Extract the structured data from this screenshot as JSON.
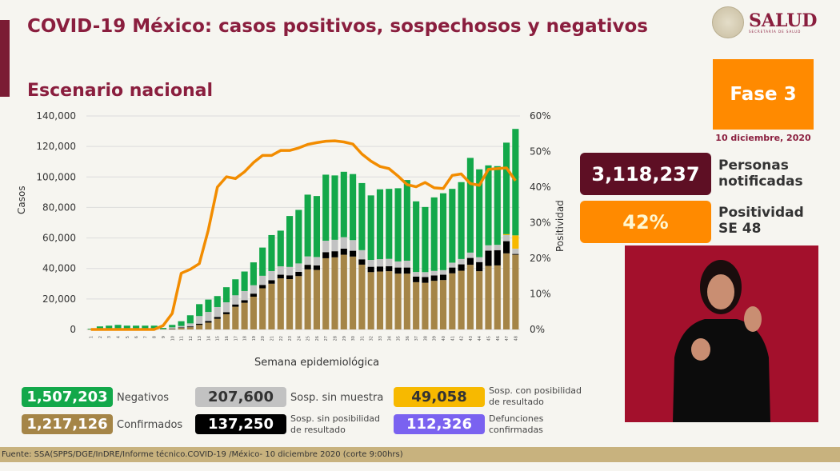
{
  "header": {
    "title": "COVID-19 México: casos positivos, sospechosos y negativos",
    "subtitle": "Escenario nacional",
    "logo_text": "SALUD",
    "logo_subtext": "SECRETARÍA DE SALUD"
  },
  "phase": {
    "label": "Fase 3",
    "date": "10 diciembre, 2020"
  },
  "kpis": [
    {
      "value": "3,118,237",
      "label_line1": "Personas",
      "label_line2": "notificadas",
      "color": "#5e0f24"
    },
    {
      "value": "42%",
      "label_line1": "Positividad",
      "label_line2": "SE 48",
      "color": "#ff8a00"
    }
  ],
  "legend": [
    {
      "value": "1,507,203",
      "label": "Negativos",
      "color": "#13a84a"
    },
    {
      "value": "207,600",
      "label": "Sosp. sin muestra",
      "color": "#c2c2c2"
    },
    {
      "value": "49,058",
      "label_line1": "Sosp. con posibilidad",
      "label_line2": "de resultado",
      "color": "#f7b900"
    },
    {
      "value": "1,217,126",
      "label": "Confirmados",
      "color": "#a58547"
    },
    {
      "value": "137,250",
      "label_line1": "Sosp. sin posibilidad",
      "label_line2": "de resultado",
      "color": "#000000"
    },
    {
      "value": "112,326",
      "label_line1": "Defunciones",
      "label_line2": "confirmadas",
      "color": "#7a62f0"
    }
  ],
  "footer": "Fuente: SSA(SPPS/DGE/InDRE/Informe técnico.COVID-19 /México- 10 diciembre 2020 (corte 9:00hrs)",
  "chart_data": {
    "type": "bar",
    "stacked": true,
    "xlabel": "Semana epidemiológica",
    "ylabel": "Casos",
    "y2label": "Positividad",
    "ylim": [
      0,
      140000
    ],
    "y2lim": [
      0,
      60
    ],
    "yticks": [
      "0",
      "20,000",
      "40,000",
      "60,000",
      "80,000",
      "100,000",
      "120,000",
      "140,000"
    ],
    "y2ticks": [
      "0%",
      "10%",
      "20%",
      "30%",
      "40%",
      "50%",
      "60%"
    ],
    "grid": true,
    "categories": [
      "1",
      "2",
      "3",
      "4",
      "5",
      "6",
      "7",
      "8",
      "9",
      "10",
      "11",
      "12",
      "13",
      "14",
      "15",
      "16",
      "17",
      "18",
      "19",
      "20",
      "21",
      "22",
      "23",
      "24",
      "25",
      "26",
      "27",
      "28",
      "29",
      "30",
      "31",
      "32",
      "33",
      "34",
      "35",
      "36",
      "37",
      "38",
      "39",
      "40",
      "41",
      "42",
      "43",
      "44",
      "45",
      "46",
      "47",
      "48"
    ],
    "series": [
      {
        "name": "Confirmados",
        "color": "#a58547",
        "values": [
          100,
          300,
          400,
          400,
          300,
          300,
          300,
          300,
          300,
          500,
          1000,
          1500,
          3000,
          4500,
          7000,
          10000,
          14900,
          17500,
          21500,
          27000,
          30000,
          33500,
          33000,
          35000,
          39400,
          39000,
          46700,
          47300,
          49000,
          47800,
          42500,
          37600,
          38000,
          38200,
          36600,
          36600,
          31000,
          30600,
          31900,
          32400,
          36800,
          38500,
          42400,
          38200,
          41700,
          42000,
          49900,
          49000
        ]
      },
      {
        "name": "Sosp. sin posibilidad de resultado",
        "color": "#000000",
        "values": [
          0,
          0,
          0,
          0,
          0,
          0,
          0,
          0,
          0,
          100,
          300,
          500,
          800,
          1000,
          1200,
          1300,
          1500,
          1700,
          2000,
          2200,
          2300,
          2400,
          2500,
          2800,
          3000,
          3000,
          4000,
          4000,
          4000,
          3800,
          3500,
          3500,
          3300,
          3300,
          4000,
          4000,
          3700,
          3800,
          3500,
          3500,
          3800,
          4200,
          4500,
          6000,
          10000,
          10000,
          8000,
          500
        ]
      },
      {
        "name": "Sosp. sin muestra",
        "color": "#c2c2c2",
        "values": [
          0,
          100,
          100,
          100,
          100,
          100,
          100,
          100,
          0,
          800,
          1000,
          2000,
          5000,
          6000,
          6500,
          6500,
          6000,
          6000,
          5500,
          6000,
          6000,
          5500,
          5500,
          5500,
          5500,
          5500,
          7500,
          7500,
          7500,
          7000,
          6000,
          4500,
          4800,
          4800,
          4000,
          4500,
          3000,
          3200,
          3000,
          3000,
          3200,
          3500,
          3500,
          3200,
          3500,
          3500,
          4000,
          3500
        ]
      },
      {
        "name": "Sosp. con posibilidad de resultado",
        "color": "#f7b900",
        "values": [
          0,
          0,
          0,
          0,
          0,
          0,
          0,
          0,
          0,
          0,
          0,
          0,
          0,
          0,
          0,
          0,
          0,
          0,
          0,
          0,
          0,
          0,
          0,
          0,
          0,
          0,
          0,
          0,
          0,
          0,
          0,
          0,
          0,
          0,
          0,
          0,
          0,
          0,
          0,
          0,
          0,
          0,
          0,
          0,
          0,
          0,
          600,
          8700
        ]
      },
      {
        "name": "Negativos",
        "color": "#13a84a",
        "values": [
          400,
          1600,
          2000,
          2500,
          2100,
          2100,
          2100,
          2100,
          700,
          1600,
          3100,
          5300,
          7800,
          8100,
          7200,
          9900,
          10500,
          12800,
          15000,
          18500,
          23600,
          23400,
          33400,
          35100,
          40500,
          40000,
          43300,
          42200,
          42900,
          43300,
          44000,
          42300,
          45800,
          45900,
          48000,
          52900,
          46300,
          42700,
          48200,
          50400,
          48400,
          50400,
          62100,
          57600,
          52400,
          51600,
          60000,
          69800
        ]
      }
    ],
    "line": {
      "name": "Positividad",
      "color": "#f28c00",
      "values": [
        0,
        0,
        0,
        0,
        0,
        0,
        0,
        0,
        1.1,
        4.5,
        15.8,
        16.9,
        18.5,
        28,
        40,
        42.9,
        42.4,
        44.3,
        46.9,
        48.9,
        48.9,
        50.3,
        50.3,
        51,
        52,
        52.5,
        52.9,
        53,
        52.7,
        52.1,
        49.3,
        47.3,
        45.8,
        45.2,
        43.1,
        40.7,
        40.1,
        41.3,
        39.8,
        39.6,
        43.3,
        43.7,
        41,
        40.5,
        45,
        45.2,
        45.4,
        41.8
      ]
    }
  }
}
